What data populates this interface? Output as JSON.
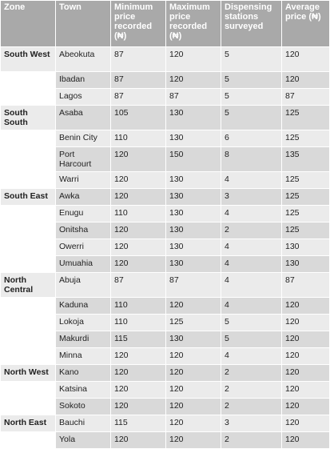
{
  "headers": {
    "zone": "Zone",
    "town": "Town",
    "min": "Minimum price recorded (₦)",
    "max": "Maximum price recorded (₦)",
    "stations": "Dispensing stations surveyed",
    "avg": "Average price (₦)"
  },
  "rows": [
    {
      "zone": "South West",
      "town": "Abeokuta",
      "min": "87",
      "max": "120",
      "stations": "5",
      "avg": "120"
    },
    {
      "zone": "",
      "town": "Ibadan",
      "min": "87",
      "max": "120",
      "stations": "5",
      "avg": "120"
    },
    {
      "zone": "",
      "town": "Lagos",
      "min": "87",
      "max": "87",
      "stations": "5",
      "avg": "87"
    },
    {
      "zone": "South South",
      "town": "Asaba",
      "min": "105",
      "max": "130",
      "stations": "5",
      "avg": "125"
    },
    {
      "zone": "",
      "town": "Benin City",
      "min": "110",
      "max": "130",
      "stations": "6",
      "avg": "125"
    },
    {
      "zone": "",
      "town": "Port Harcourt",
      "min": "120",
      "max": "150",
      "stations": "8",
      "avg": "135"
    },
    {
      "zone": "",
      "town": "Warri",
      "min": "120",
      "max": "130",
      "stations": "4",
      "avg": "125"
    },
    {
      "zone": "South East",
      "town": "Awka",
      "min": "120",
      "max": "130",
      "stations": "3",
      "avg": "125"
    },
    {
      "zone": "",
      "town": "Enugu",
      "min": "110",
      "max": "130",
      "stations": "4",
      "avg": "125"
    },
    {
      "zone": "",
      "town": "Onitsha",
      "min": "120",
      "max": "130",
      "stations": "2",
      "avg": "125"
    },
    {
      "zone": "",
      "town": "Owerri",
      "min": "120",
      "max": "130",
      "stations": "4",
      "avg": "130"
    },
    {
      "zone": "",
      "town": "Umuahia",
      "min": "120",
      "max": "130",
      "stations": "4",
      "avg": "130"
    },
    {
      "zone": "North Central",
      "town": "Abuja",
      "min": "87",
      "max": "87",
      "stations": "4",
      "avg": "87"
    },
    {
      "zone": "",
      "town": "Kaduna",
      "min": "110",
      "max": "120",
      "stations": "4",
      "avg": "120"
    },
    {
      "zone": "",
      "town": "Lokoja",
      "min": "110",
      "max": "125",
      "stations": "5",
      "avg": "120"
    },
    {
      "zone": "",
      "town": "Makurdi",
      "min": "115",
      "max": "130",
      "stations": "5",
      "avg": "120"
    },
    {
      "zone": "",
      "town": "Minna",
      "min": "120",
      "max": "120",
      "stations": "4",
      "avg": "120"
    },
    {
      "zone": "North West",
      "town": "Kano",
      "min": "120",
      "max": "120",
      "stations": "2",
      "avg": "120"
    },
    {
      "zone": "",
      "town": "Katsina",
      "min": "120",
      "max": "120",
      "stations": "2",
      "avg": "120"
    },
    {
      "zone": "",
      "town": "Sokoto",
      "min": "120",
      "max": "120",
      "stations": "2",
      "avg": "120"
    },
    {
      "zone": "North East",
      "town": "Bauchi",
      "min": "115",
      "max": "120",
      "stations": "3",
      "avg": "120"
    },
    {
      "zone": "",
      "town": "Yola",
      "min": "120",
      "max": "120",
      "stations": "2",
      "avg": "120"
    }
  ]
}
